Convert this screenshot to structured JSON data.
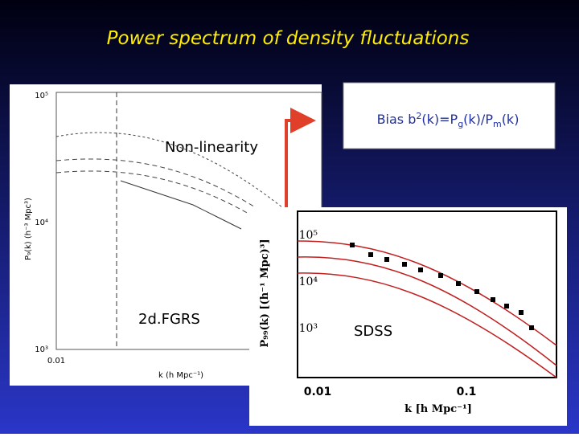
{
  "slide": {
    "title": "Power spectrum of density fluctuations",
    "annotations": {
      "nonlinearity": "Non-linearity",
      "survey_left": "2d.FGRS",
      "survey_right": "SDSS"
    },
    "bias": [
      "Bias b",
      "2",
      "(k)=P",
      "g",
      "(k)/P",
      "m",
      "(k)"
    ],
    "left_plot": {
      "yticks": [
        "10⁵",
        "10⁴",
        "10³"
      ],
      "xticks": [
        "0.01"
      ],
      "xlabel": "k (h Mpc⁻¹)",
      "ylabel": "P₉(k) (h⁻³ Mpc³)"
    },
    "right_plot": {
      "yticks": [
        "10⁵",
        "10⁴",
        "10³"
      ],
      "xticks": [
        "0.01",
        "0.1"
      ],
      "xlabel": "k  [h  Mpc⁻¹]",
      "ylabel": "P₉₉(k)  [(h⁻¹ Mpc)³]"
    }
  }
}
